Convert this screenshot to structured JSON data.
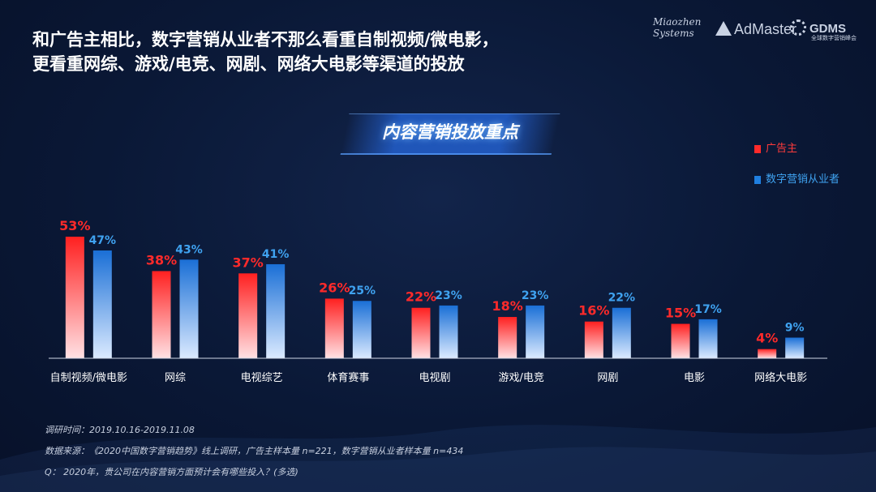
{
  "headline": {
    "line1": "和广告主相比，数字营销从业者不那么看重自制视频/微电影，",
    "line2": "更看重网综、游戏/电竞、网剧、网络大电影等渠道的投放"
  },
  "logos": {
    "miaozhen_line1": "Miaozhen",
    "miaozhen_line2": "Systems",
    "admaster": "AdMaster",
    "gdms": "GDMS",
    "gdms_sub": "全球数字营销峰会"
  },
  "banner_title": "内容营销投放重点",
  "legend": {
    "advertiser": "广告主",
    "practitioner": "数字营销从业者"
  },
  "colors": {
    "advertiser": "#ff2a2a",
    "practitioner": "#1f7fe0",
    "advertiser_label": "#ff2a2a",
    "practitioner_label": "#3fa2f0"
  },
  "chart_data": {
    "type": "bar",
    "title": "内容营销投放重点",
    "categories": [
      "自制视频/微电影",
      "网综",
      "电视综艺",
      "体育赛事",
      "电视剧",
      "游戏/电竞",
      "网剧",
      "电影",
      "网络大电影"
    ],
    "series": [
      {
        "name": "广告主",
        "values": [
          53,
          38,
          37,
          26,
          22,
          18,
          16,
          15,
          4
        ]
      },
      {
        "name": "数字营销从业者",
        "values": [
          47,
          43,
          41,
          25,
          23,
          23,
          22,
          17,
          9
        ]
      }
    ],
    "value_suffix": "%",
    "ylim": [
      0,
      53
    ],
    "grid": false,
    "legend_position": "right"
  },
  "footnotes": {
    "survey_time": "调研时间：2019.10.16-2019.11.08",
    "source": "数据来源：《2020中国数字营销趋势》线上调研，广告主样本量 n=221，数字营销从业者样本量 n=434",
    "question": "Q：  2020年，贵公司在内容营销方面预计会有哪些投入？(多选)"
  }
}
